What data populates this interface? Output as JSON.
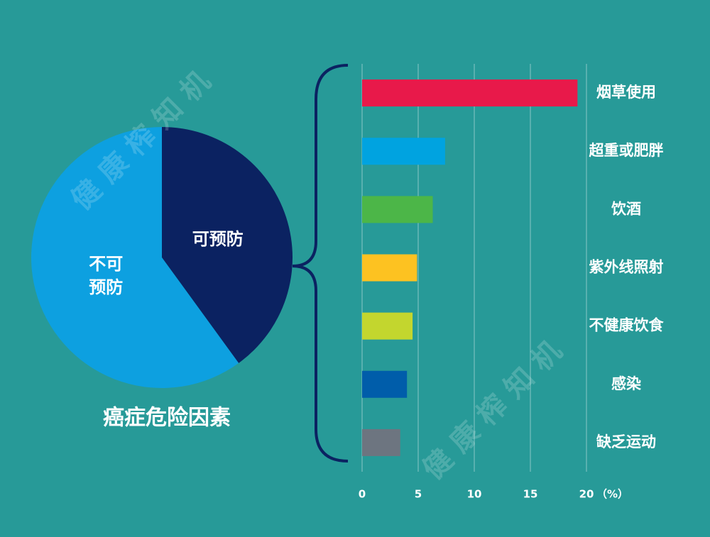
{
  "watermark": "健康榨知机",
  "chart_data": [
    {
      "type": "pie",
      "title": "癌症危险因素",
      "categories": [
        "可预防",
        "不可预防"
      ],
      "values": [
        40,
        60
      ],
      "colors": [
        "#0b2261",
        "#0da0e0"
      ]
    },
    {
      "type": "bar",
      "orientation": "horizontal",
      "categories": [
        "烟草使用",
        "超重或肥胖",
        "饮酒",
        "紫外线照射",
        "不健康饮食",
        "感染",
        "缺乏运动"
      ],
      "values": [
        19.2,
        7.4,
        6.3,
        4.9,
        4.5,
        4.0,
        3.4
      ],
      "colors": [
        "#e8194a",
        "#00a3e0",
        "#4cb648",
        "#fdc221",
        "#c3d62e",
        "#005daa",
        "#6d7580"
      ],
      "xlim": [
        0,
        20
      ],
      "xticks": [
        0,
        5,
        10,
        15,
        20
      ],
      "xlabel": "（%）",
      "grid": true
    }
  ]
}
